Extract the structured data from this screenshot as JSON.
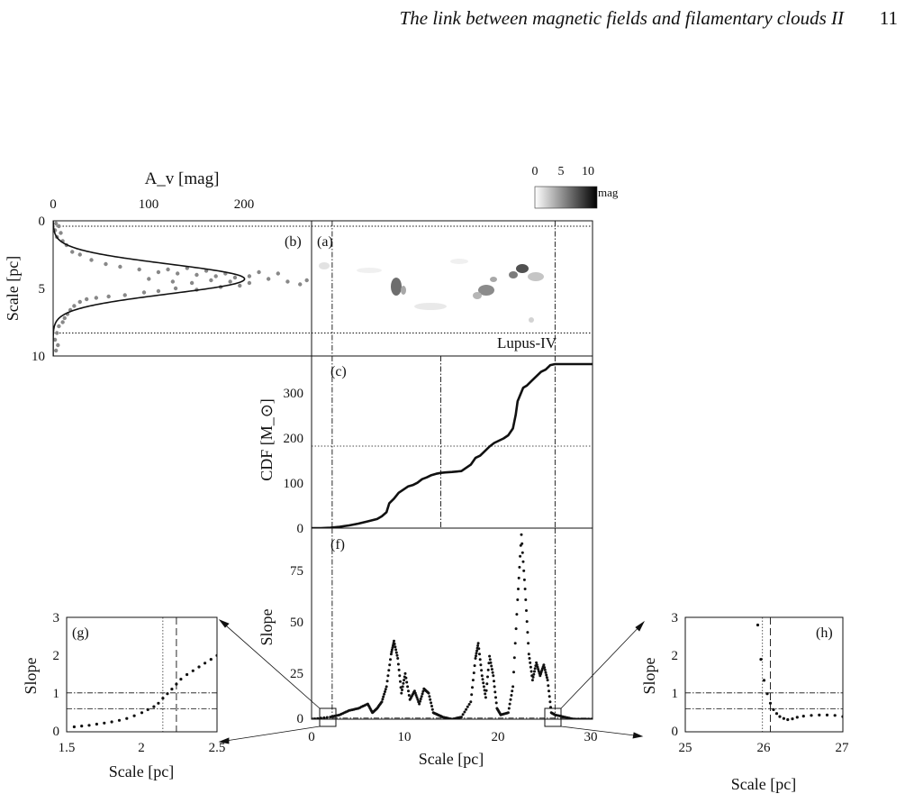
{
  "header": {
    "running_title": "The link between magnetic fields and filamentary clouds II",
    "page_number": "11"
  },
  "figure": {
    "colorbar": {
      "ticks": [
        "0",
        "5",
        "10"
      ],
      "unit": "mag"
    },
    "panel_a": {
      "letter": "(a)",
      "region_name": "Lupus-IV"
    },
    "panel_b": {
      "letter": "(b)",
      "x_axis_label": "A_v [mag]",
      "x_ticks": [
        "0",
        "100",
        "200"
      ],
      "y_axis_label": "Scale [pc]",
      "y_ticks": [
        "0",
        "5",
        "10"
      ]
    },
    "panel_c": {
      "letter": "(c)",
      "y_axis_label": "CDF [M_⊙]",
      "y_ticks": [
        "0",
        "100",
        "200",
        "300"
      ]
    },
    "panel_f": {
      "letter": "(f)",
      "y_axis_label": "Slope",
      "y_ticks": [
        "0",
        "25",
        "50",
        "75"
      ],
      "x_ticks": [
        "0",
        "10",
        "20",
        "30"
      ],
      "x_axis_label": "Scale [pc]"
    },
    "panel_g": {
      "letter": "(g)",
      "y_axis_label": "Slope",
      "y_ticks": [
        "0",
        "1",
        "2",
        "3"
      ],
      "x_ticks": [
        "1.5",
        "2",
        "2.5"
      ],
      "x_axis_label": "Scale [pc]"
    },
    "panel_h": {
      "letter": "(h)",
      "y_axis_label": "Slope",
      "y_ticks": [
        "0",
        "1",
        "2",
        "3"
      ],
      "x_ticks": [
        "25",
        "26",
        "27"
      ],
      "x_axis_label": "Scale [pc]"
    }
  },
  "chart_data": [
    {
      "panel": "b",
      "type": "scatter",
      "xlabel": "A_v [mag]",
      "ylabel": "Scale [pc]",
      "xlim": [
        0,
        270
      ],
      "ylim": [
        10,
        0
      ],
      "gaussian_fit": {
        "amplitude": 200,
        "center": 4.3,
        "sigma": 1.1,
        "baseline": 0
      },
      "horizontal_lines": [
        0.4,
        8.3
      ],
      "points": [
        [
          3,
          0.2
        ],
        [
          6,
          0.4
        ],
        [
          2,
          0.7
        ],
        [
          8,
          0.9
        ],
        [
          4,
          1.2
        ],
        [
          10,
          1.5
        ],
        [
          14,
          1.8
        ],
        [
          20,
          2.3
        ],
        [
          28,
          2.5
        ],
        [
          40,
          2.9
        ],
        [
          55,
          3.2
        ],
        [
          70,
          3.4
        ],
        [
          90,
          3.6
        ],
        [
          110,
          3.8
        ],
        [
          130,
          3.9
        ],
        [
          150,
          4.0
        ],
        [
          170,
          4.1
        ],
        [
          190,
          4.2
        ],
        [
          205,
          4.1
        ],
        [
          215,
          3.8
        ],
        [
          180,
          3.9
        ],
        [
          160,
          3.7
        ],
        [
          140,
          3.5
        ],
        [
          120,
          3.6
        ],
        [
          100,
          4.3
        ],
        [
          125,
          4.5
        ],
        [
          145,
          4.6
        ],
        [
          165,
          4.4
        ],
        [
          185,
          4.5
        ],
        [
          205,
          4.6
        ],
        [
          225,
          4.3
        ],
        [
          245,
          4.5
        ],
        [
          258,
          4.7
        ],
        [
          265,
          4.4
        ],
        [
          235,
          3.9
        ],
        [
          195,
          4.8
        ],
        [
          175,
          4.9
        ],
        [
          150,
          5.1
        ],
        [
          128,
          5.0
        ],
        [
          110,
          5.2
        ],
        [
          95,
          5.3
        ],
        [
          75,
          5.5
        ],
        [
          58,
          5.6
        ],
        [
          45,
          5.7
        ],
        [
          35,
          5.8
        ],
        [
          28,
          6.0
        ],
        [
          22,
          6.3
        ],
        [
          18,
          6.6
        ],
        [
          15,
          6.9
        ],
        [
          12,
          7.2
        ],
        [
          10,
          7.5
        ],
        [
          6,
          7.8
        ],
        [
          4,
          8.3
        ],
        [
          2,
          8.8
        ],
        [
          5,
          9.2
        ],
        [
          3,
          9.6
        ]
      ]
    },
    {
      "panel": "c",
      "type": "line",
      "ylabel": "CDF [M_⊙]",
      "xlim": [
        0,
        30
      ],
      "ylim": [
        0,
        380
      ],
      "x": [
        0,
        1,
        2,
        3,
        4,
        5,
        6,
        7,
        7.5,
        8,
        8.3,
        8.8,
        9.3,
        9.8,
        10.3,
        10.8,
        11.3,
        11.8,
        12.3,
        12.8,
        13.3,
        13.8,
        14.3,
        15,
        16,
        17,
        17.5,
        18,
        18.5,
        19,
        19.5,
        20,
        20.5,
        21,
        21.5,
        21.8,
        22,
        22.3,
        22.6,
        23,
        23.5,
        24,
        24.5,
        25,
        25.5,
        26,
        27,
        28,
        29,
        30
      ],
      "values": [
        0,
        0,
        1,
        3,
        6,
        10,
        15,
        20,
        26,
        35,
        55,
        65,
        78,
        85,
        92,
        95,
        100,
        108,
        112,
        117,
        120,
        122,
        123,
        124,
        126,
        140,
        155,
        160,
        170,
        180,
        188,
        193,
        198,
        205,
        220,
        250,
        280,
        295,
        310,
        315,
        325,
        335,
        345,
        350,
        360,
        362,
        362,
        362,
        362,
        362
      ],
      "vertical_lines": [
        2.2,
        13.8,
        26.0
      ],
      "horizontal_lines": [
        181
      ]
    },
    {
      "panel": "f",
      "type": "scatter",
      "xlabel": "Scale [pc]",
      "ylabel": "Slope",
      "xlim": [
        0,
        30
      ],
      "ylim": [
        0,
        88
      ],
      "vertical_lines": [
        2.2,
        26.0
      ],
      "x": [
        0,
        2,
        3,
        4,
        5,
        6,
        6.5,
        7,
        7.5,
        8,
        8.5,
        8.8,
        9.2,
        9.6,
        10,
        10.5,
        11,
        11.5,
        12,
        12.5,
        13,
        13.5,
        14,
        15,
        16,
        17,
        17.5,
        17.8,
        18.2,
        18.6,
        19,
        19.4,
        19.8,
        20.2,
        21,
        21.5,
        22,
        22.4,
        22.8,
        23.2,
        23.6,
        24,
        24.4,
        24.8,
        25.2,
        25.6,
        26,
        27,
        28,
        29,
        30
      ],
      "values": [
        0,
        1,
        2,
        4,
        5,
        7,
        3,
        5,
        8,
        15,
        30,
        36,
        28,
        12,
        21,
        9,
        13,
        7,
        14,
        12,
        3,
        2,
        1,
        0,
        1,
        8,
        28,
        35,
        20,
        10,
        29,
        20,
        5,
        2,
        3,
        15,
        55,
        85,
        60,
        30,
        18,
        26,
        20,
        25,
        18,
        3,
        2,
        1,
        0,
        0,
        0
      ]
    },
    {
      "panel": "g",
      "type": "scatter",
      "xlabel": "Scale [pc]",
      "ylabel": "Slope",
      "xlim": [
        1.5,
        2.5
      ],
      "ylim": [
        0,
        3
      ],
      "vertical_lines": [
        2.14,
        2.23
      ],
      "horizontal_lines": [
        1.02,
        0.6
      ],
      "x": [
        1.55,
        1.6,
        1.65,
        1.7,
        1.75,
        1.8,
        1.85,
        1.9,
        1.95,
        2.0,
        2.04,
        2.08,
        2.11,
        2.14,
        2.17,
        2.2,
        2.23,
        2.26,
        2.3,
        2.34,
        2.38,
        2.42,
        2.46,
        2.5
      ],
      "values": [
        0.13,
        0.15,
        0.17,
        0.2,
        0.23,
        0.26,
        0.3,
        0.35,
        0.42,
        0.5,
        0.58,
        0.66,
        0.75,
        0.88,
        1.0,
        1.12,
        1.25,
        1.38,
        1.5,
        1.6,
        1.7,
        1.8,
        1.9,
        2.0
      ]
    },
    {
      "panel": "h",
      "type": "scatter",
      "xlabel": "Scale [pc]",
      "ylabel": "Slope",
      "xlim": [
        25,
        27
      ],
      "ylim": [
        0,
        3
      ],
      "vertical_lines": [
        25.98,
        26.08
      ],
      "horizontal_lines": [
        1.02,
        0.6
      ],
      "x": [
        25.92,
        25.96,
        26.0,
        26.04,
        26.08,
        26.12,
        26.16,
        26.2,
        26.25,
        26.3,
        26.36,
        26.42,
        26.5,
        26.6,
        26.7,
        26.8,
        26.9,
        27.0
      ],
      "values": [
        2.8,
        1.9,
        1.35,
        1.0,
        0.75,
        0.58,
        0.48,
        0.4,
        0.35,
        0.32,
        0.34,
        0.38,
        0.41,
        0.43,
        0.44,
        0.44,
        0.43,
        0.4
      ]
    }
  ]
}
